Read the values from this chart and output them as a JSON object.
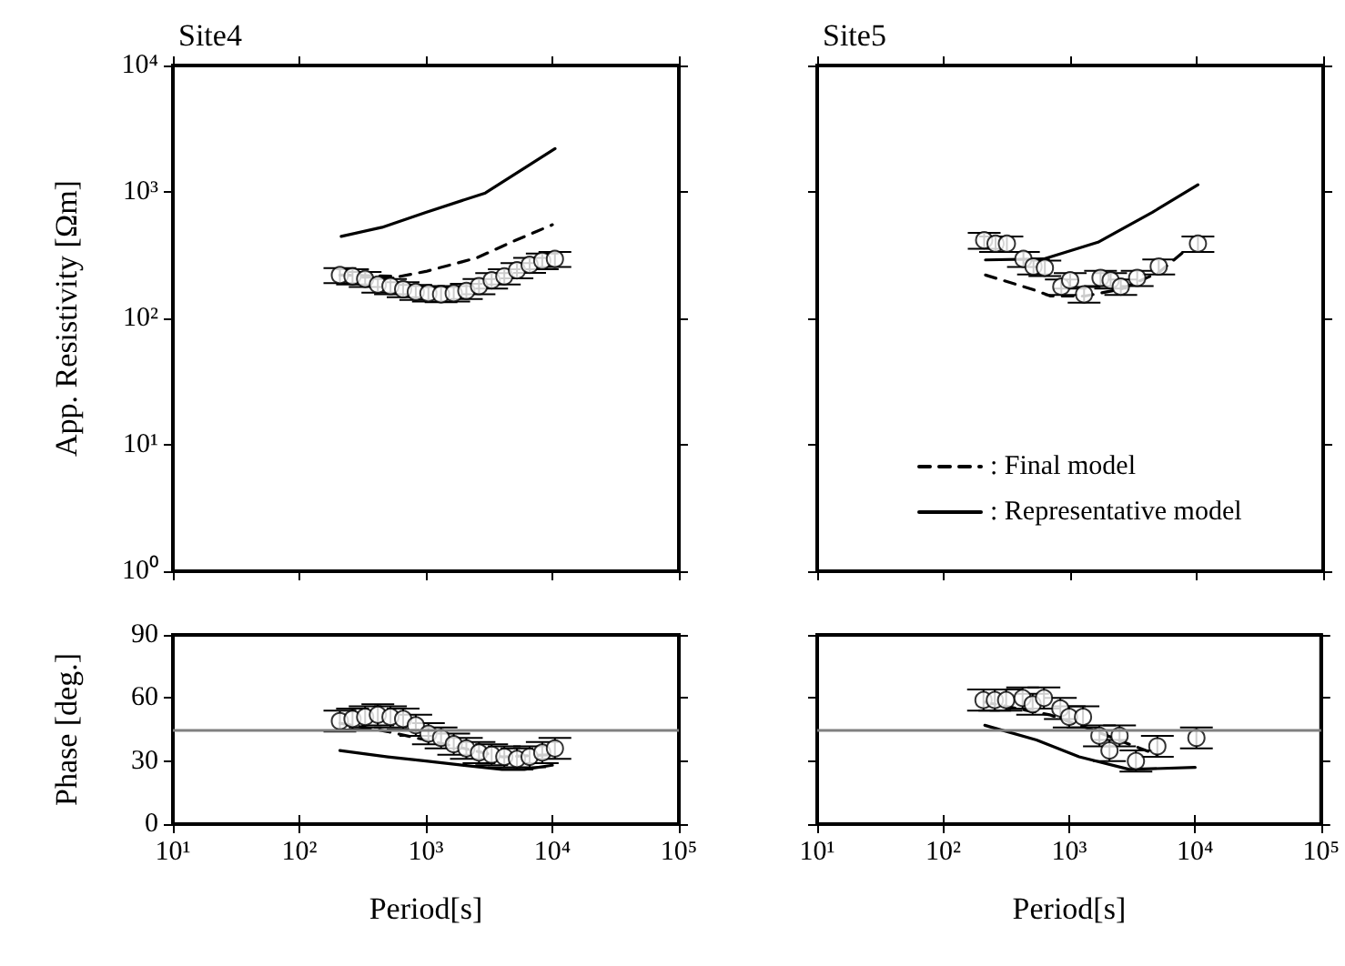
{
  "chart_data": [
    {
      "type": "scatter",
      "title": "Site4",
      "ylabel": "App. Resistivity [Ωm]",
      "log": "xy",
      "xlim": [
        10,
        100000
      ],
      "ylim": [
        1,
        10000
      ],
      "xticks": [
        10,
        100,
        1000,
        10000,
        100000
      ],
      "yticks": [
        {
          "value": 1,
          "label": "10⁰"
        },
        {
          "value": 10,
          "label": "10¹"
        },
        {
          "value": 100,
          "label": "10²"
        },
        {
          "value": 1000,
          "label": "10³"
        },
        {
          "value": 10000,
          "label": "10⁴"
        }
      ],
      "tick_labels": "y",
      "series": [
        {
          "type": "line",
          "line_style": "dashed",
          "marker": "none",
          "color": "#000000",
          "x": [
            209,
            630,
            1000,
            2500,
            5000,
            10000
          ],
          "values": [
            220,
            215,
            235,
            300,
            410,
            550
          ]
        },
        {
          "type": "line",
          "line_style": "solid",
          "marker": "none",
          "color": "#000000",
          "x": [
            214,
            450,
            1000,
            2950,
            10500
          ],
          "values": [
            445,
            525,
            690,
            980,
            2200
          ]
        },
        {
          "marker": "circle",
          "color": "#000000",
          "x": [
            209,
            263,
            331,
            417,
            525,
            661,
            832,
            1047,
            1318,
            1660,
            2089,
            2630,
            3311,
            4169,
            5248,
            6607,
            8318,
            10471
          ],
          "values": [
            220,
            215,
            205,
            185,
            180,
            170,
            162,
            158,
            155,
            158,
            165,
            180,
            200,
            215,
            240,
            265,
            285,
            295
          ],
          "errors": [
            30,
            30,
            28,
            25,
            25,
            23,
            22,
            22,
            21,
            22,
            23,
            25,
            28,
            30,
            33,
            36,
            40,
            40
          ]
        }
      ]
    },
    {
      "type": "scatter",
      "title": "Site5",
      "log": "xy",
      "xlim": [
        10,
        100000
      ],
      "ylim": [
        1,
        10000
      ],
      "xticks": [
        10,
        100,
        1000,
        10000,
        100000
      ],
      "yticks": [
        1,
        10,
        100,
        1000,
        10000
      ],
      "tick_labels": false,
      "legend": "bottom right",
      "series": [
        {
          "type": "line",
          "name": ": Final model",
          "line_style": "dashed",
          "marker": "none",
          "color": "#000000",
          "x": [
            214,
            500,
            700,
            1300,
            2500,
            5000,
            8000
          ],
          "values": [
            220,
            170,
            150,
            150,
            170,
            230,
            340
          ]
        },
        {
          "type": "line",
          "name": ": Representative model",
          "line_style": "solid",
          "marker": "none",
          "color": "#000000",
          "x": [
            214,
            617,
            1660,
            4470,
            10233
          ],
          "values": [
            290,
            295,
            400,
            690,
            1140
          ]
        },
        {
          "marker": "circle",
          "color": "#000000",
          "x": [
            209,
            257,
            316,
            427,
            513,
            631,
            851,
            1000,
            1288,
            1738,
            2089,
            2512,
            3388,
            5012,
            10233
          ],
          "values": [
            415,
            390,
            390,
            295,
            257,
            251,
            178,
            200,
            155,
            209,
            200,
            178,
            209,
            257,
            390
          ],
          "errors": [
            60,
            55,
            55,
            40,
            35,
            35,
            25,
            28,
            22,
            29,
            28,
            25,
            29,
            35,
            55
          ]
        }
      ]
    },
    {
      "type": "scatter",
      "ylabel": "Phase [deg.]",
      "xlabel": "Period[s]",
      "log": "x",
      "xlim": [
        10,
        100000
      ],
      "ylim": [
        0,
        90
      ],
      "xticks": [
        {
          "value": 10,
          "label": "10¹"
        },
        {
          "value": 100,
          "label": "10²"
        },
        {
          "value": 1000,
          "label": "10³"
        },
        {
          "value": 10000,
          "label": "10⁴"
        },
        {
          "value": 100000,
          "label": "10⁵"
        }
      ],
      "yticks": [
        0,
        30,
        60,
        90
      ],
      "ref_lines": [
        {
          "axis": "y",
          "value": 45,
          "color": "#808080"
        }
      ],
      "series": [
        {
          "type": "line",
          "line_style": "dashed",
          "marker": "none",
          "color": "#000000",
          "x": [
            209,
            500,
            1000,
            2000,
            4000,
            10000
          ],
          "values": [
            48,
            44,
            40,
            36,
            32,
            33
          ]
        },
        {
          "type": "line",
          "line_style": "solid",
          "marker": "none",
          "color": "#000000",
          "x": [
            209,
            500,
            1000,
            2000,
            4000,
            6000,
            10000
          ],
          "values": [
            35,
            32,
            30,
            28,
            26,
            26,
            28
          ]
        },
        {
          "marker": "circle",
          "color": "#000000",
          "x": [
            209,
            263,
            331,
            417,
            525,
            661,
            832,
            1047,
            1318,
            1660,
            2089,
            2630,
            3311,
            4169,
            5248,
            6607,
            8318,
            10471
          ],
          "values": [
            49,
            50,
            51,
            52,
            51,
            50,
            47,
            43,
            41,
            38,
            36,
            34,
            33,
            32,
            31,
            32,
            34,
            36
          ],
          "errors": [
            5,
            5,
            5,
            5,
            5,
            5,
            5,
            5,
            5,
            5,
            5,
            5,
            5,
            5,
            5,
            5,
            5,
            5
          ]
        }
      ]
    },
    {
      "type": "scatter",
      "xlabel": "Period[s]",
      "log": "x",
      "xlim": [
        10,
        100000
      ],
      "ylim": [
        0,
        90
      ],
      "xticks": [
        {
          "value": 10,
          "label": "10¹"
        },
        {
          "value": 100,
          "label": "10²"
        },
        {
          "value": 1000,
          "label": "10³"
        },
        {
          "value": 10000,
          "label": "10⁴"
        },
        {
          "value": 100000,
          "label": "10⁵"
        }
      ],
      "yticks": [
        0,
        30,
        60,
        90
      ],
      "tick_labels": "x",
      "ref_lines": [
        {
          "axis": "y",
          "value": 45,
          "color": "#808080"
        }
      ],
      "series": [
        {
          "type": "line",
          "line_style": "dashed",
          "marker": "none",
          "color": "#000000",
          "x": [
            214,
            700,
            1500,
            3000,
            5000
          ],
          "values": [
            58,
            52,
            45,
            38,
            33
          ]
        },
        {
          "type": "line",
          "line_style": "solid",
          "marker": "none",
          "color": "#000000",
          "x": [
            214,
            550,
            1200,
            3000,
            10000
          ],
          "values": [
            47,
            40,
            32,
            26,
            27
          ]
        },
        {
          "marker": "circle",
          "color": "#000000",
          "x": [
            209,
            257,
            316,
            427,
            513,
            631,
            851,
            1000,
            1288,
            1738,
            2089,
            2512,
            3388,
            5012,
            10233
          ],
          "values": [
            59,
            59,
            59,
            60,
            57,
            60,
            55,
            51,
            51,
            42,
            35,
            42,
            30,
            37,
            41
          ],
          "errors": [
            5,
            5,
            5,
            5,
            5,
            5,
            5,
            5,
            5,
            5,
            5,
            5,
            5,
            5,
            5
          ]
        }
      ]
    }
  ]
}
